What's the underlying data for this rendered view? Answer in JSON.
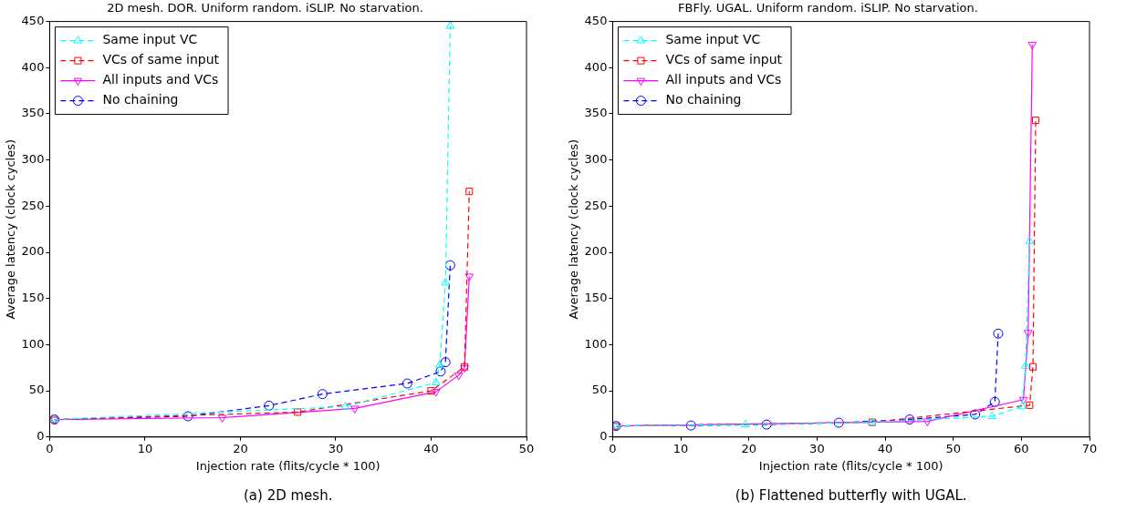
{
  "chart_data": [
    {
      "type": "line",
      "title": "2D mesh. DOR. Uniform random. iSLIP. No starvation.",
      "xlabel": "Injection rate (flits/cycle * 100)",
      "ylabel": "Average latency (clock cycles)",
      "xlim": [
        0,
        50
      ],
      "xticks": [
        0,
        10,
        20,
        30,
        40,
        50
      ],
      "ylim": [
        0,
        450
      ],
      "yticks": [
        0,
        50,
        100,
        150,
        200,
        250,
        300,
        350,
        400,
        450
      ],
      "grid": false,
      "legend": "top left",
      "annotations": [
        "(a) 2D mesh."
      ],
      "series": [
        {
          "name": "Same input VC",
          "color": "#00ffff",
          "marker": "triangle",
          "line_style": "dashed",
          "x": [
            0.5,
            31.0,
            40.5,
            40.9,
            41.5,
            42.0
          ],
          "values": [
            19,
            33,
            59,
            78,
            167,
            445
          ]
        },
        {
          "name": "VCs of same input",
          "color": "#ff0000",
          "marker": "square",
          "line_style": "dashed",
          "x": [
            0.5,
            26.0,
            40.0,
            43.5,
            44.0
          ],
          "values": [
            19,
            27,
            50,
            76,
            266
          ]
        },
        {
          "name": "All inputs and VCs",
          "color": "#ff00ff",
          "marker": "triangle_down",
          "line_style": "solid",
          "x": [
            0.5,
            18.1,
            32.0,
            40.5,
            42.9,
            43.5,
            44.0
          ],
          "values": [
            19,
            21,
            31,
            49,
            67,
            75,
            174
          ]
        },
        {
          "name": "No chaining",
          "color": "#0000ff",
          "marker": "circle",
          "line_style": "dashed",
          "x": [
            0.5,
            14.5,
            23.0,
            28.6,
            37.5,
            41.0,
            41.5,
            42.0
          ],
          "values": [
            19,
            22.5,
            34,
            46.5,
            58,
            71,
            81,
            186
          ]
        }
      ]
    },
    {
      "type": "line",
      "title": "FBFly. UGAL. Uniform random. iSLIP. No starvation.",
      "xlabel": "Injection rate (flits/cycle * 100)",
      "ylabel": "Average latency (clock cycles)",
      "xlim": [
        0,
        70
      ],
      "xticks": [
        0,
        10,
        20,
        30,
        40,
        50,
        60,
        70
      ],
      "ylim": [
        0,
        450
      ],
      "yticks": [
        0,
        50,
        100,
        150,
        200,
        250,
        300,
        350,
        400,
        450
      ],
      "grid": false,
      "legend": "top left",
      "annotations": [
        "(b) Flattened butterfly with UGAL."
      ],
      "series": [
        {
          "name": "Same input VC",
          "color": "#00ffff",
          "marker": "triangle",
          "line_style": "dashed",
          "x": [
            0.5,
            19.5,
            38.1,
            55.7,
            60.1,
            60.6,
            61.2
          ],
          "values": [
            12,
            13.5,
            16,
            22.5,
            33,
            77,
            212
          ]
        },
        {
          "name": "VCs of same input",
          "color": "#ff0000",
          "marker": "square",
          "line_style": "dashed",
          "x": [
            0.5,
            38.1,
            61.2,
            61.7,
            62.1
          ],
          "values": [
            12,
            16,
            34.5,
            76,
            343
          ]
        },
        {
          "name": "All inputs and VCs",
          "color": "#ff00ff",
          "marker": "triangle_down",
          "line_style": "solid",
          "x": [
            0.5,
            46.2,
            60.3,
            61.0,
            61.6
          ],
          "values": [
            12,
            17,
            40.5,
            113,
            425
          ]
        },
        {
          "name": "No chaining",
          "color": "#0000ff",
          "marker": "circle",
          "line_style": "dashed",
          "x": [
            0.5,
            11.5,
            22.6,
            33.2,
            43.6,
            53.2,
            56.1,
            56.6
          ],
          "values": [
            12,
            12.5,
            13.5,
            15.5,
            19,
            24.5,
            38,
            112
          ]
        }
      ]
    }
  ]
}
